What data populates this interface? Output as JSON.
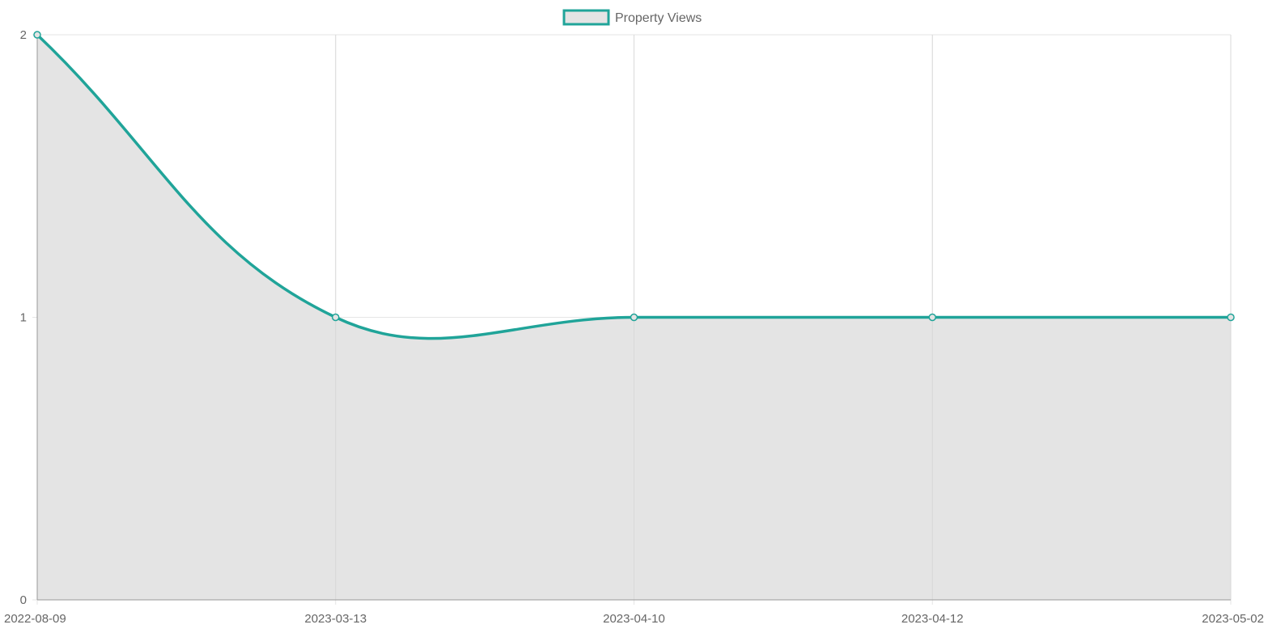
{
  "chart_data": {
    "type": "area",
    "categories": [
      "2022-08-09",
      "2023-03-13",
      "2023-04-10",
      "2023-04-12",
      "2023-05-02"
    ],
    "series": [
      {
        "name": "Property Views",
        "values": [
          2,
          1,
          1,
          1,
          1
        ],
        "line_color": "#20a499",
        "fill_color": "#e4e4e4"
      }
    ],
    "yticks": [
      "0",
      "1",
      "2"
    ],
    "ylim": [
      0,
      2
    ],
    "grid": true,
    "smoothed": true,
    "legend_position": "top-center",
    "title": "",
    "xlabel": "",
    "ylabel": ""
  },
  "colors": {
    "grid": "#e5e5e5",
    "axis": "#999999",
    "tick_text": "#666666"
  }
}
